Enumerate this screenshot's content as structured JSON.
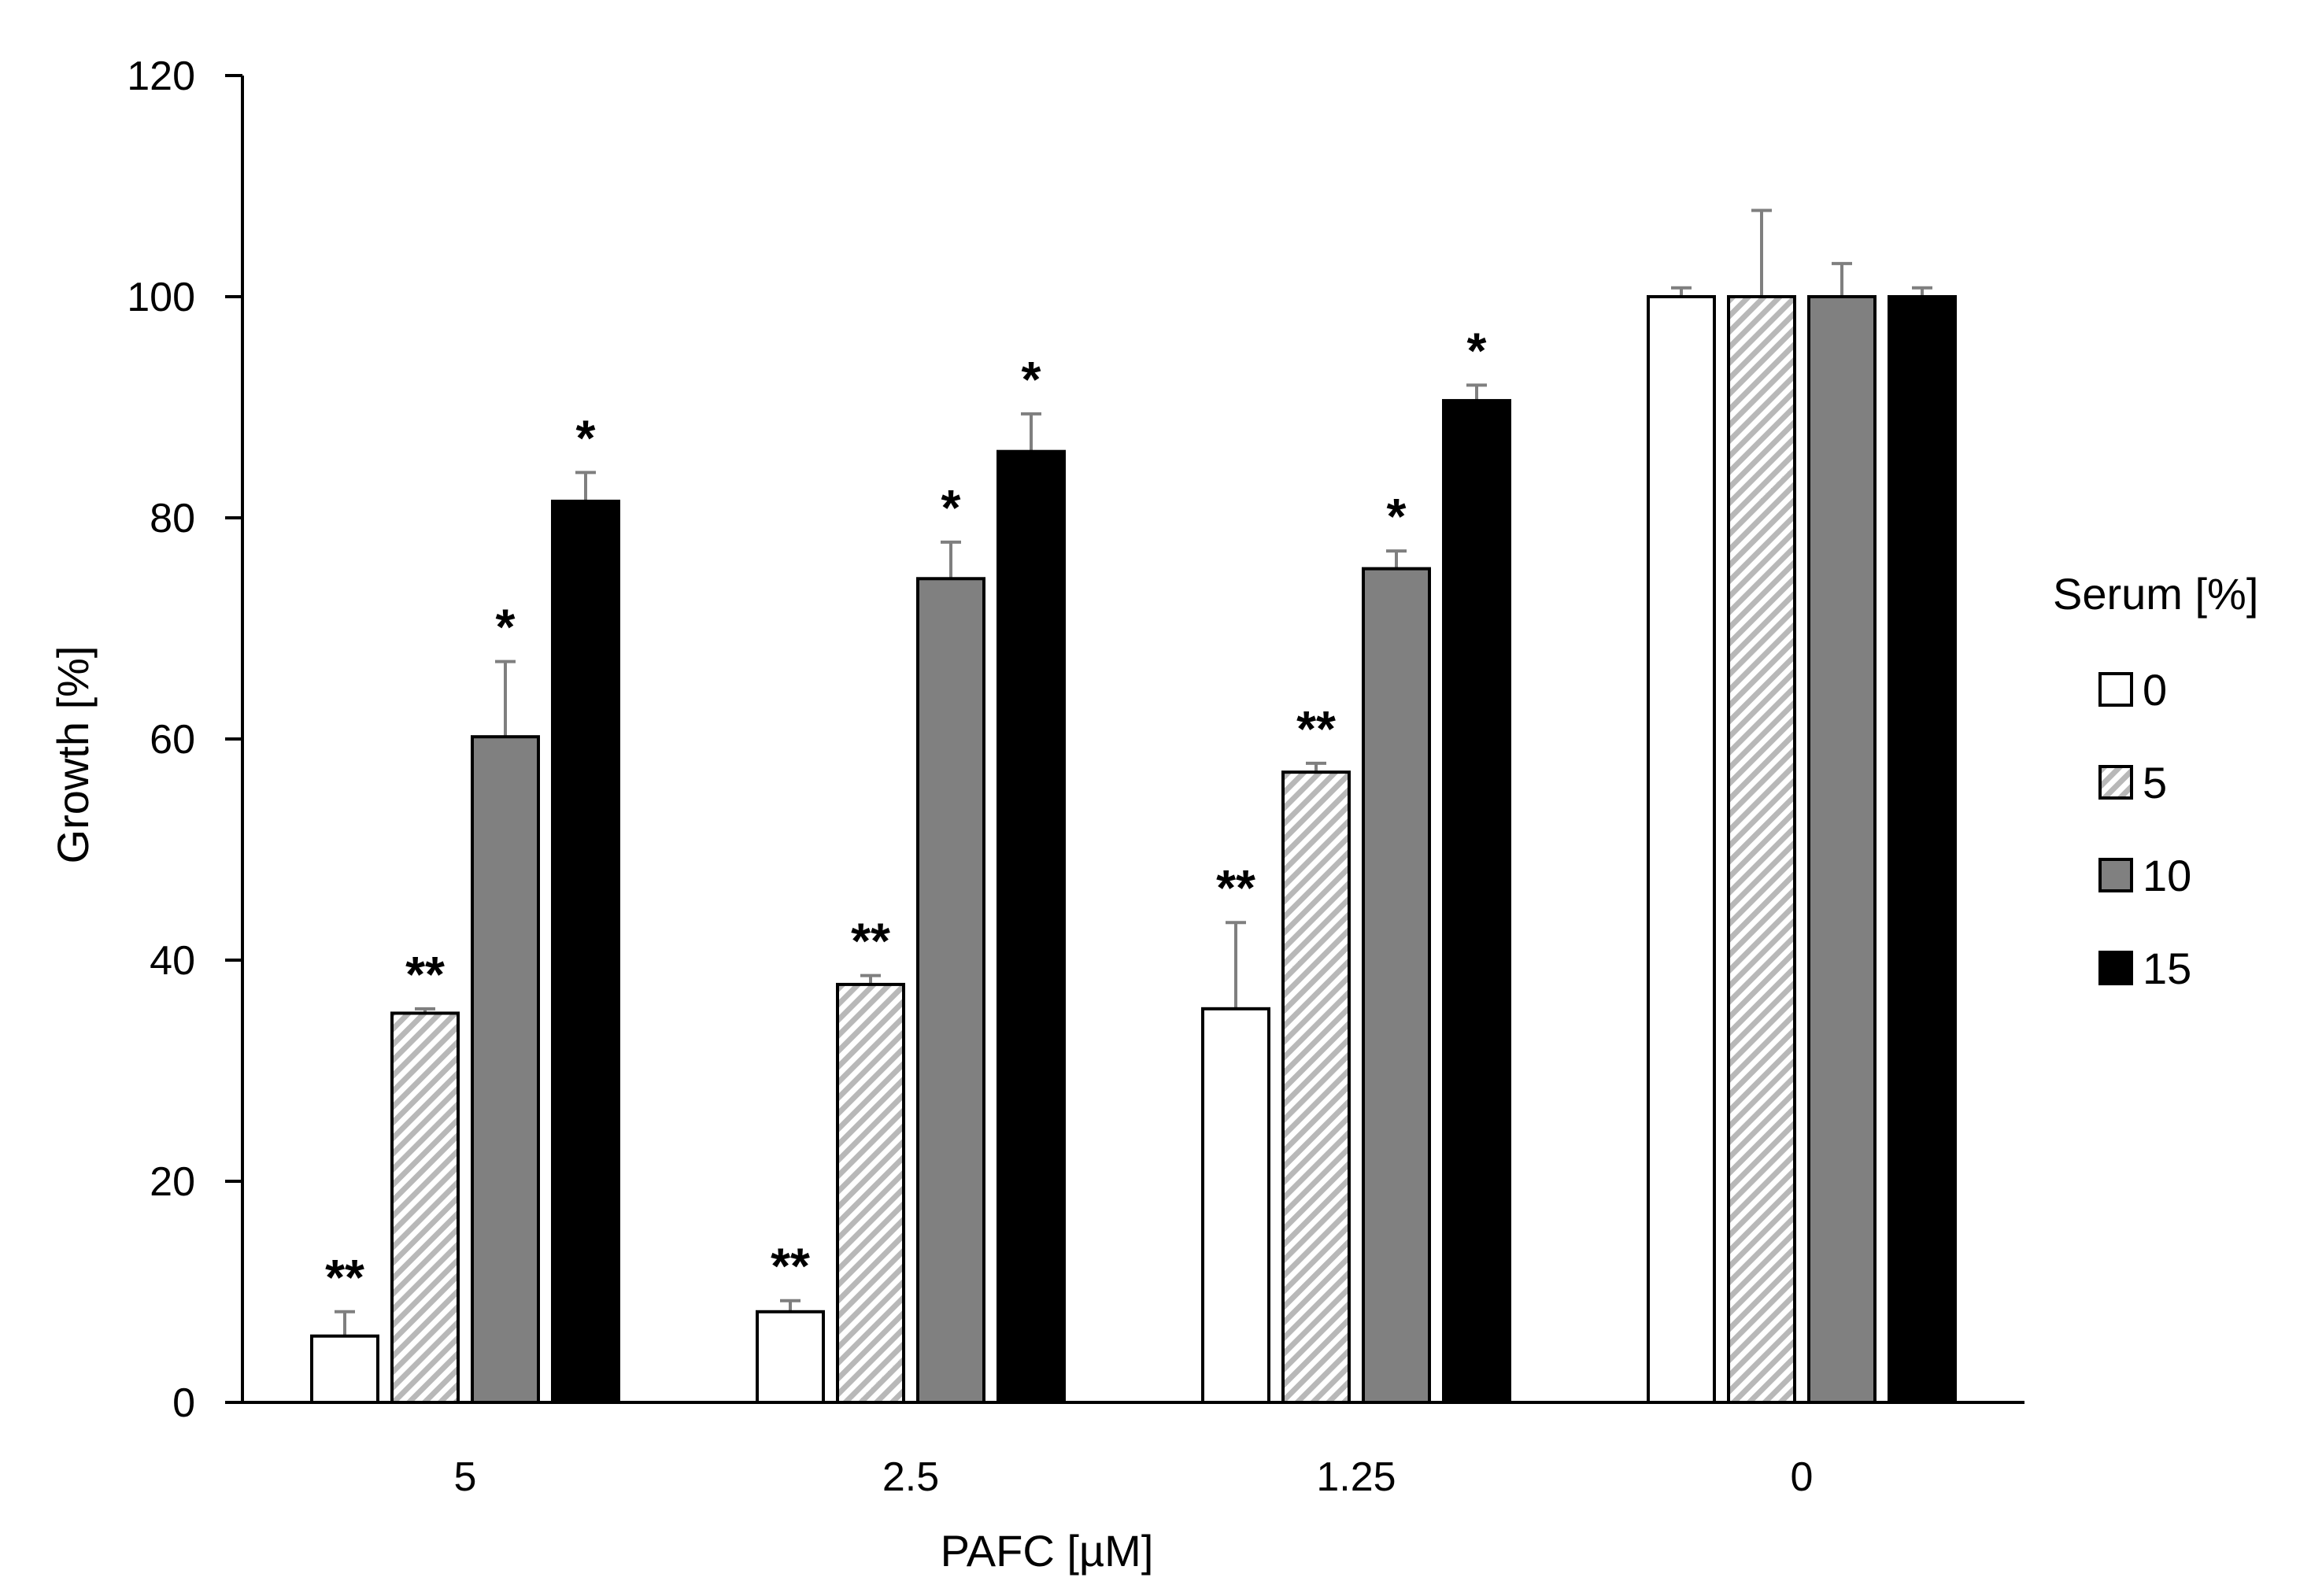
{
  "chart_data": {
    "type": "bar",
    "title": "",
    "xlabel": "PAFC [µM]",
    "ylabel": "Growth [%]",
    "ylim": [
      0,
      120
    ],
    "yticks": [
      0,
      20,
      40,
      60,
      80,
      100,
      120
    ],
    "grid": false,
    "legend": {
      "title": "Serum [%]",
      "position": "right"
    },
    "categories": [
      "5",
      "2.5",
      "1.25",
      "0"
    ],
    "series": [
      {
        "name": "0",
        "fill": "white",
        "color": "#ffffff",
        "values": [
          6,
          8.2,
          35.6,
          100
        ],
        "errors": [
          2.2,
          1.0,
          7.8,
          0.8
        ],
        "significance": [
          "**",
          "**",
          "**",
          ""
        ]
      },
      {
        "name": "5",
        "fill": "hatched",
        "color": "#c8c8c8",
        "values": [
          35.2,
          37.8,
          57,
          100
        ],
        "errors": [
          0.4,
          0.8,
          0.8,
          7.8
        ],
        "significance": [
          "**",
          "**",
          "**",
          ""
        ]
      },
      {
        "name": "10",
        "fill": "gray",
        "color": "#808080",
        "values": [
          60.2,
          74.5,
          75.4,
          100
        ],
        "errors": [
          6.8,
          3.3,
          1.6,
          3.0
        ],
        "significance": [
          "*",
          "*",
          "*",
          ""
        ]
      },
      {
        "name": "15",
        "fill": "black",
        "color": "#000000",
        "values": [
          81.5,
          86,
          90.6,
          100
        ],
        "errors": [
          2.6,
          3.4,
          1.4,
          0.8
        ],
        "significance": [
          "*",
          "*",
          "*",
          ""
        ]
      }
    ]
  }
}
